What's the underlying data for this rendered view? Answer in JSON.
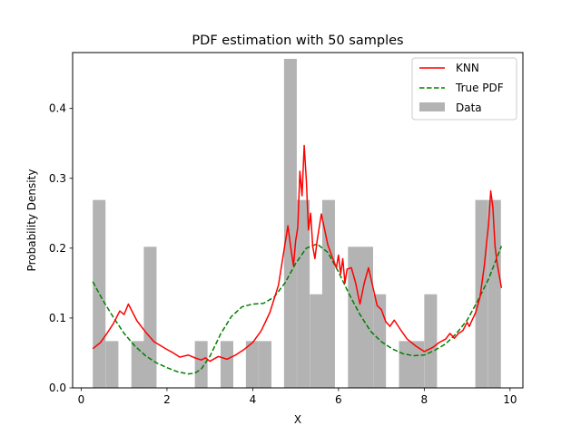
{
  "chart_data": {
    "type": "bar",
    "title": "PDF estimation with 50 samples",
    "xlabel": "X",
    "ylabel": "Probability Density",
    "xlim": [
      -0.2,
      10.3
    ],
    "ylim": [
      0,
      0.48
    ],
    "xticks": [
      0,
      2,
      4,
      6,
      8,
      10
    ],
    "yticks": [
      0.0,
      0.1,
      0.2,
      0.3,
      0.4
    ],
    "xtick_labels": [
      "0",
      "2",
      "4",
      "6",
      "8",
      "10"
    ],
    "ytick_labels": [
      "0.0",
      "0.1",
      "0.2",
      "0.3",
      "0.4"
    ],
    "grid": false,
    "legend": {
      "placement": "top-right",
      "entries": [
        "KNN",
        "True PDF",
        "Data"
      ]
    },
    "colors": {
      "knn": "#ff0000",
      "true_pdf": "#008000",
      "data": "#b3b3b3"
    },
    "histogram": {
      "name": "Data",
      "bin_width": 0.297,
      "bin_starts": [
        0.27,
        0.57,
        0.87,
        1.17,
        1.46,
        1.76,
        2.06,
        2.35,
        2.65,
        2.95,
        3.25,
        3.54,
        3.84,
        4.14,
        4.43,
        4.73,
        5.03,
        5.33,
        5.62,
        5.92,
        6.22,
        6.51,
        6.81,
        7.11,
        7.41,
        7.7,
        8.0,
        8.3,
        8.59,
        8.89,
        9.19,
        9.49
      ],
      "values": [
        0.269,
        0.067,
        0,
        0.067,
        0.202,
        0,
        0,
        0,
        0.067,
        0,
        0.067,
        0,
        0.067,
        0.067,
        0,
        0.471,
        0.269,
        0.134,
        0.269,
        0,
        0.202,
        0.202,
        0.134,
        0,
        0.067,
        0.067,
        0.134,
        0,
        0,
        0,
        0.269,
        0.269
      ]
    },
    "series": [
      {
        "name": "True PDF",
        "style": "dashed",
        "x": [
          0.27,
          0.5,
          0.75,
          1.0,
          1.25,
          1.5,
          1.75,
          2.0,
          2.25,
          2.5,
          2.65,
          2.8,
          3.0,
          3.25,
          3.5,
          3.75,
          4.0,
          4.25,
          4.5,
          4.75,
          5.0,
          5.25,
          5.5,
          5.75,
          6.0,
          6.25,
          6.5,
          6.75,
          7.0,
          7.25,
          7.5,
          7.75,
          8.0,
          8.25,
          8.5,
          8.75,
          9.0,
          9.25,
          9.5,
          9.8
        ],
        "y": [
          0.152,
          0.126,
          0.101,
          0.078,
          0.06,
          0.046,
          0.036,
          0.029,
          0.023,
          0.02,
          0.021,
          0.027,
          0.045,
          0.077,
          0.102,
          0.116,
          0.12,
          0.121,
          0.13,
          0.15,
          0.178,
          0.2,
          0.206,
          0.194,
          0.166,
          0.134,
          0.105,
          0.081,
          0.066,
          0.056,
          0.049,
          0.046,
          0.047,
          0.054,
          0.063,
          0.078,
          0.097,
          0.125,
          0.156,
          0.203
        ]
      },
      {
        "name": "KNN",
        "style": "solid",
        "x": [
          0.27,
          0.45,
          0.6,
          0.75,
          0.9,
          1.0,
          1.1,
          1.2,
          1.3,
          1.5,
          1.7,
          2.0,
          2.15,
          2.3,
          2.5,
          2.65,
          2.8,
          2.9,
          3.0,
          3.2,
          3.4,
          3.6,
          3.8,
          4.0,
          4.2,
          4.4,
          4.6,
          4.75,
          4.82,
          4.9,
          4.95,
          5.0,
          5.05,
          5.1,
          5.15,
          5.2,
          5.25,
          5.3,
          5.35,
          5.4,
          5.45,
          5.5,
          5.6,
          5.75,
          5.85,
          5.95,
          6.0,
          6.05,
          6.1,
          6.15,
          6.2,
          6.3,
          6.4,
          6.5,
          6.6,
          6.7,
          6.8,
          6.9,
          7.0,
          7.1,
          7.2,
          7.3,
          7.45,
          7.6,
          7.8,
          8.0,
          8.2,
          8.35,
          8.5,
          8.6,
          8.7,
          8.8,
          8.9,
          9.0,
          9.05,
          9.1,
          9.2,
          9.3,
          9.4,
          9.5,
          9.55,
          9.6,
          9.65,
          9.7,
          9.8
        ],
        "y": [
          0.056,
          0.065,
          0.078,
          0.092,
          0.11,
          0.105,
          0.12,
          0.108,
          0.096,
          0.08,
          0.066,
          0.055,
          0.05,
          0.044,
          0.047,
          0.043,
          0.04,
          0.043,
          0.038,
          0.045,
          0.041,
          0.047,
          0.055,
          0.065,
          0.082,
          0.108,
          0.147,
          0.205,
          0.232,
          0.195,
          0.175,
          0.21,
          0.23,
          0.31,
          0.275,
          0.347,
          0.297,
          0.226,
          0.25,
          0.202,
          0.185,
          0.21,
          0.249,
          0.205,
          0.188,
          0.172,
          0.19,
          0.163,
          0.185,
          0.15,
          0.17,
          0.172,
          0.15,
          0.12,
          0.15,
          0.172,
          0.145,
          0.118,
          0.112,
          0.095,
          0.088,
          0.097,
          0.083,
          0.07,
          0.06,
          0.052,
          0.058,
          0.065,
          0.07,
          0.078,
          0.071,
          0.078,
          0.082,
          0.094,
          0.088,
          0.095,
          0.108,
          0.13,
          0.175,
          0.235,
          0.282,
          0.258,
          0.203,
          0.178,
          0.143
        ]
      }
    ]
  }
}
